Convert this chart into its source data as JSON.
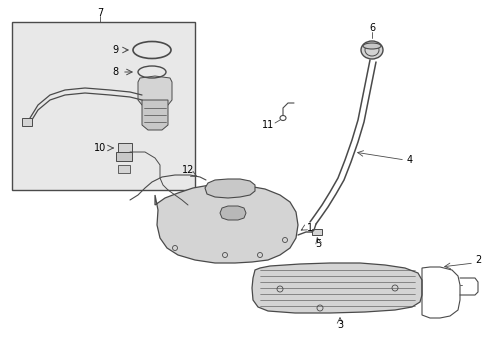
{
  "bg_color": "#ffffff",
  "lc": "#4a4a4a",
  "box_bg": "#e8e8e8",
  "part_fill": "#d4d4d4",
  "part_fill2": "#c8c8c8",
  "figsize": [
    4.89,
    3.6
  ],
  "dpi": 100
}
